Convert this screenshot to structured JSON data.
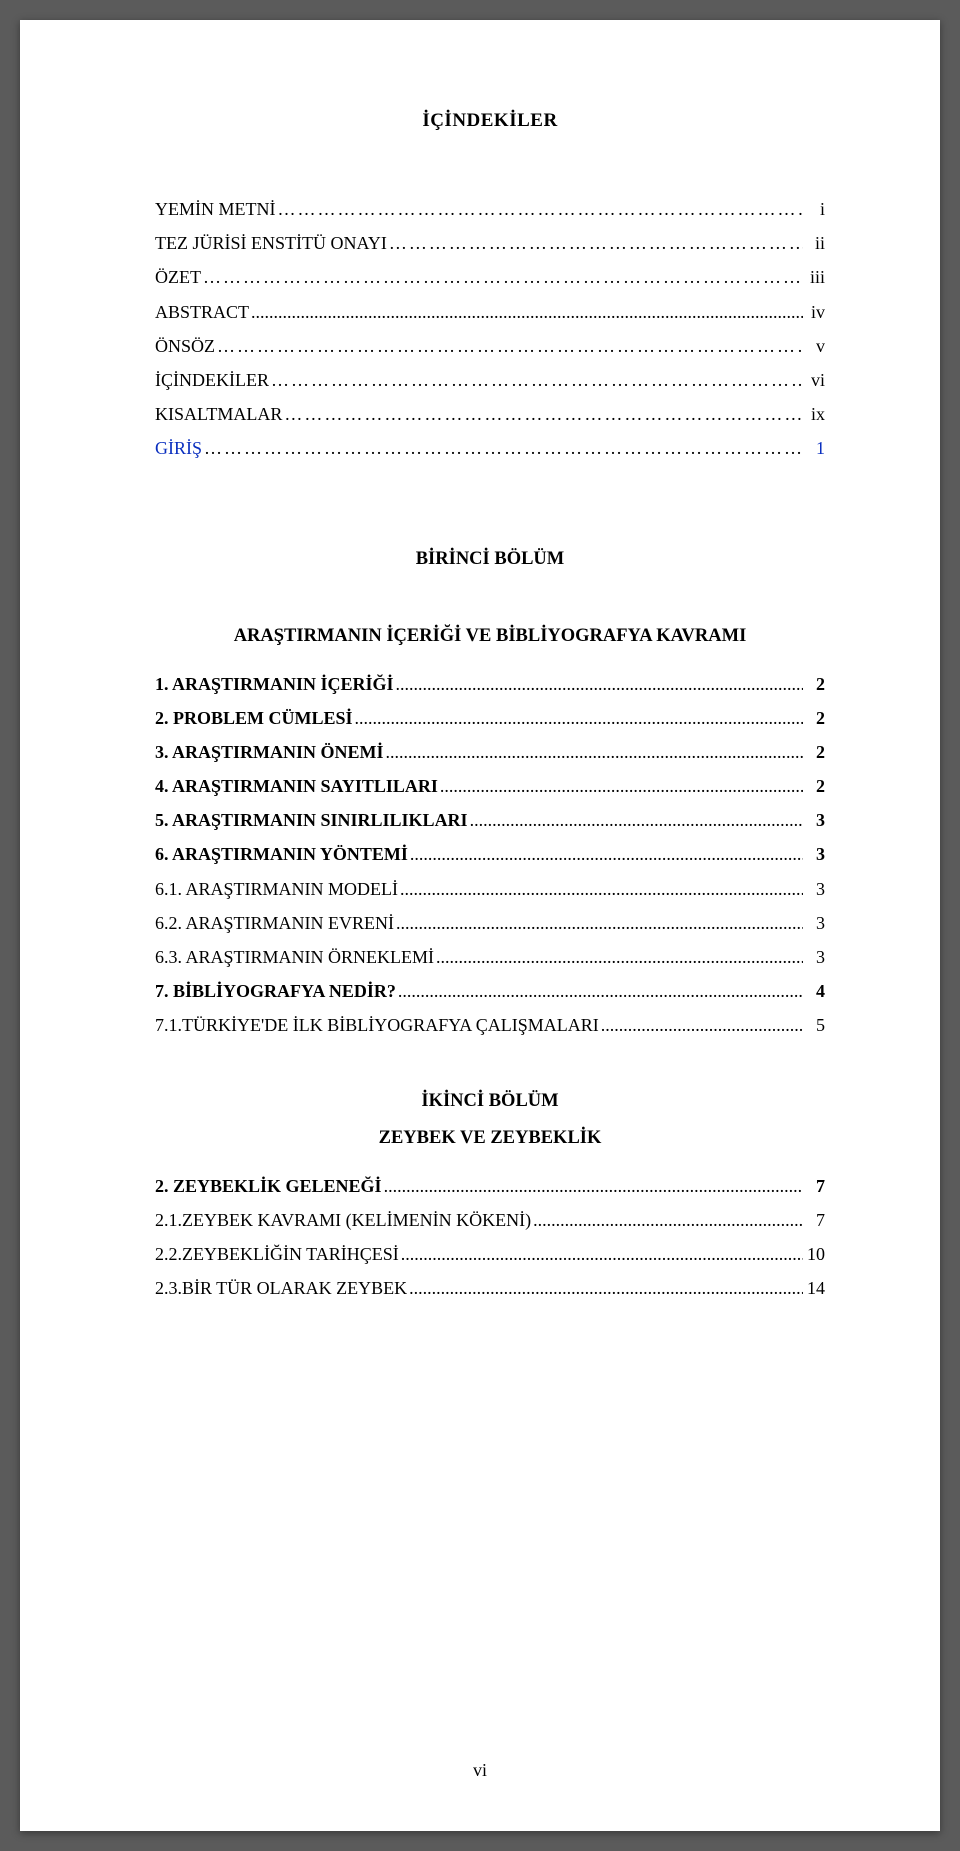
{
  "title": "İÇİNDEKİLER",
  "front": [
    {
      "label": "YEMİN METNİ",
      "page": "i",
      "bold": false,
      "leader": "ellipsis"
    },
    {
      "label": "TEZ JÜRİSİ ENSTİTÜ ONAYI",
      "page": "ii",
      "bold": false,
      "leader": "ellipsis"
    },
    {
      "label": "ÖZET",
      "page": "iii",
      "bold": false,
      "leader": "mixed"
    },
    {
      "label": "ABSTRACT",
      "page": "iv",
      "bold": false,
      "leader": "dots"
    },
    {
      "label": "ÖNSÖZ",
      "page": "v",
      "bold": false,
      "leader": "mixed"
    },
    {
      "label": "İÇİNDEKİLER",
      "page": "vi",
      "bold": false,
      "leader": "mixed"
    },
    {
      "label": "KISALTMALAR",
      "page": "ix",
      "bold": false,
      "leader": "mixed"
    },
    {
      "label": "GİRİŞ",
      "page": "1",
      "bold": false,
      "leader": "mixed",
      "link": true
    }
  ],
  "chapter1": {
    "heading_line1": "BİRİNCİ BÖLÜM",
    "heading_line2": "ARAŞTIRMANIN İÇERİĞİ VE BİBLİYOGRAFYA KAVRAMI",
    "entries": [
      {
        "label": "1. ARAŞTIRMANIN İÇERİĞİ",
        "page": "2",
        "bold": true,
        "leader": "dots"
      },
      {
        "label": "2. PROBLEM CÜMLESİ",
        "page": "2",
        "bold": true,
        "leader": "dots"
      },
      {
        "label": "3. ARAŞTIRMANIN ÖNEMİ",
        "page": "2",
        "bold": true,
        "leader": "dots"
      },
      {
        "label": "4. ARAŞTIRMANIN SAYITLILARI",
        "page": "2",
        "bold": true,
        "leader": "dots"
      },
      {
        "label": "5. ARAŞTIRMANIN SINIRLILIKLARI",
        "page": "3",
        "bold": true,
        "leader": "dots"
      },
      {
        "label": "6. ARAŞTIRMANIN YÖNTEMİ",
        "page": "3",
        "bold": true,
        "leader": "dots"
      },
      {
        "label": "6.1. ARAŞTIRMANIN MODELİ",
        "page": "3",
        "bold": false,
        "leader": "dots"
      },
      {
        "label": "6.2. ARAŞTIRMANIN EVRENİ",
        "page": "3",
        "bold": false,
        "leader": "dots"
      },
      {
        "label": "6.3. ARAŞTIRMANIN ÖRNEKLEMİ",
        "page": "3",
        "bold": false,
        "leader": "dots"
      },
      {
        "label": "7. BİBLİYOGRAFYA NEDİR?",
        "page": "4",
        "bold": true,
        "leader": "dots"
      },
      {
        "label": "7.1.TÜRKİYE'DE İLK BİBLİYOGRAFYA ÇALIŞMALARI",
        "page": "5",
        "bold": false,
        "leader": "dots"
      }
    ]
  },
  "chapter2": {
    "heading_line1": "İKİNCİ BÖLÜM",
    "heading_line2": "ZEYBEK VE ZEYBEKLİK",
    "entries": [
      {
        "label": "2. ZEYBEKLİK GELENEĞİ",
        "page": "7",
        "bold": true,
        "leader": "dots"
      },
      {
        "label": "2.1.ZEYBEK KAVRAMI (KELİMENİN KÖKENİ)",
        "page": "7",
        "bold": false,
        "leader": "dots"
      },
      {
        "label": "2.2.ZEYBEKLİĞİN TARİHÇESİ",
        "page": "10",
        "bold": false,
        "leader": "dots"
      },
      {
        "label": "2.3.BİR TÜR OLARAK ZEYBEK",
        "page": "14",
        "bold": false,
        "leader": "dots"
      }
    ]
  },
  "page_number": "vi",
  "colors": {
    "page_bg": "#ffffff",
    "body_bg": "#5b5b5b",
    "text": "#000000",
    "link": "#0a2fbf"
  },
  "typography": {
    "font_family": "Times New Roman",
    "title_size_pt": 14,
    "body_size_pt": 13
  }
}
